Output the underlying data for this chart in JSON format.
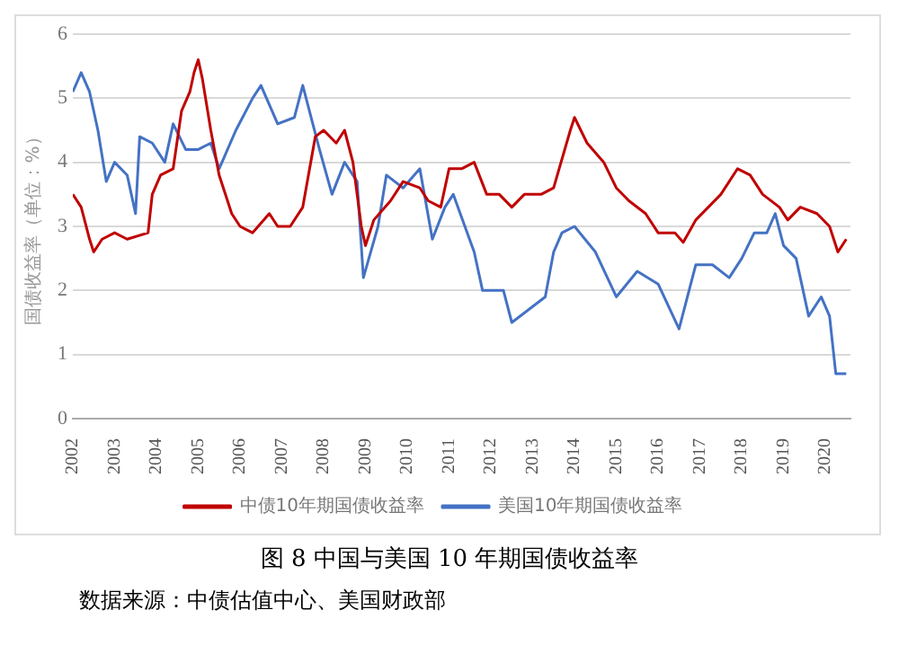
{
  "chart_data": {
    "type": "line",
    "title": "图 8 中国与美国 10 年期国债收益率",
    "ylabel": "国债收益率（单位：%）",
    "annotations": [
      "数据来源：中债估值中心、美国财政部"
    ],
    "xlim": [
      2002,
      2020.6
    ],
    "xticks": [
      2002,
      2003,
      2004,
      2005,
      2006,
      2007,
      2008,
      2009,
      2010,
      2011,
      2012,
      2013,
      2014,
      2015,
      2016,
      2017,
      2018,
      2019,
      2020
    ],
    "ylim": [
      0,
      6
    ],
    "yticks": [
      0,
      1,
      2,
      3,
      4,
      5,
      6
    ],
    "grid": "y",
    "legend": "bottom",
    "marker": "none",
    "line_style": "solid",
    "series": [
      {
        "name": "中债10年期国债收益率",
        "color": "#c00000",
        "x": [
          2002.0,
          2002.2,
          2002.4,
          2002.5,
          2002.7,
          2003.0,
          2003.3,
          2003.8,
          2003.9,
          2004.1,
          2004.4,
          2004.6,
          2004.8,
          2004.9,
          2005.0,
          2005.1,
          2005.3,
          2005.5,
          2005.8,
          2006.0,
          2006.3,
          2006.7,
          2006.9,
          2007.2,
          2007.5,
          2007.8,
          2008.0,
          2008.3,
          2008.5,
          2008.7,
          2008.9,
          2009.0,
          2009.2,
          2009.6,
          2009.9,
          2010.3,
          2010.5,
          2010.8,
          2011.0,
          2011.3,
          2011.6,
          2011.9,
          2012.2,
          2012.5,
          2012.8,
          2013.2,
          2013.5,
          2013.9,
          2014.0,
          2014.3,
          2014.7,
          2015.0,
          2015.3,
          2015.7,
          2016.0,
          2016.4,
          2016.6,
          2016.9,
          2017.2,
          2017.5,
          2017.9,
          2018.2,
          2018.5,
          2018.9,
          2019.1,
          2019.4,
          2019.8,
          2020.1,
          2020.3,
          2020.5
        ],
        "values": [
          3.5,
          3.3,
          2.8,
          2.6,
          2.8,
          2.9,
          2.8,
          2.9,
          3.5,
          3.8,
          3.9,
          4.8,
          5.1,
          5.4,
          5.6,
          5.3,
          4.5,
          3.8,
          3.2,
          3.0,
          2.9,
          3.2,
          3.0,
          3.0,
          3.3,
          4.4,
          4.5,
          4.3,
          4.5,
          4.0,
          3.0,
          2.7,
          3.1,
          3.4,
          3.7,
          3.6,
          3.4,
          3.3,
          3.9,
          3.9,
          4.0,
          3.5,
          3.5,
          3.3,
          3.5,
          3.5,
          3.6,
          4.5,
          4.7,
          4.3,
          4.0,
          3.6,
          3.4,
          3.2,
          2.9,
          2.9,
          2.75,
          3.1,
          3.3,
          3.5,
          3.9,
          3.8,
          3.5,
          3.3,
          3.1,
          3.3,
          3.2,
          3.0,
          2.6,
          2.8
        ]
      },
      {
        "name": "美国10年期国债收益率",
        "color": "#4472c4",
        "x": [
          2002.0,
          2002.2,
          2002.4,
          2002.6,
          2002.8,
          2003.0,
          2003.3,
          2003.5,
          2003.6,
          2003.9,
          2004.2,
          2004.4,
          2004.7,
          2005.0,
          2005.3,
          2005.5,
          2005.9,
          2006.3,
          2006.5,
          2006.9,
          2007.3,
          2007.5,
          2007.9,
          2008.2,
          2008.5,
          2008.8,
          2008.95,
          2009.3,
          2009.5,
          2009.9,
          2010.3,
          2010.6,
          2010.9,
          2011.1,
          2011.6,
          2011.8,
          2012.3,
          2012.5,
          2012.9,
          2013.3,
          2013.5,
          2013.7,
          2014.0,
          2014.5,
          2015.0,
          2015.5,
          2016.0,
          2016.5,
          2016.9,
          2017.3,
          2017.7,
          2018.0,
          2018.3,
          2018.6,
          2018.8,
          2019.0,
          2019.3,
          2019.6,
          2019.9,
          2020.1,
          2020.25,
          2020.5
        ],
        "values": [
          5.1,
          5.4,
          5.1,
          4.5,
          3.7,
          4.0,
          3.8,
          3.2,
          4.4,
          4.3,
          4.0,
          4.6,
          4.2,
          4.2,
          4.3,
          3.9,
          4.5,
          5.0,
          5.2,
          4.6,
          4.7,
          5.2,
          4.2,
          3.5,
          4.0,
          3.7,
          2.2,
          3.0,
          3.8,
          3.6,
          3.9,
          2.8,
          3.3,
          3.5,
          2.6,
          2.0,
          2.0,
          1.5,
          1.7,
          1.9,
          2.6,
          2.9,
          3.0,
          2.6,
          1.9,
          2.3,
          2.1,
          1.4,
          2.4,
          2.4,
          2.2,
          2.5,
          2.9,
          2.9,
          3.2,
          2.7,
          2.5,
          1.6,
          1.9,
          1.6,
          0.7,
          0.7
        ]
      }
    ]
  }
}
